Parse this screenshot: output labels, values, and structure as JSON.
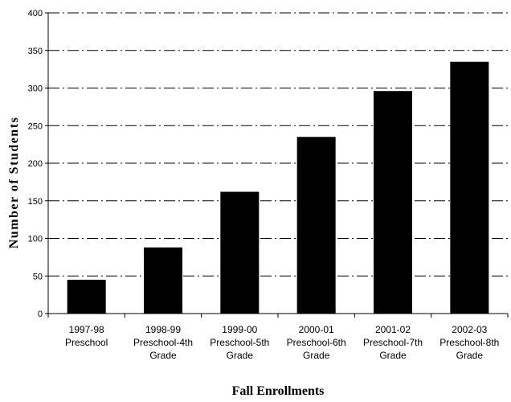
{
  "chart_data": {
    "type": "bar",
    "title": "",
    "xlabel": "Fall Enrollments",
    "ylabel": "Number of Students",
    "ylim": [
      0,
      400
    ],
    "yticks": [
      0,
      50,
      100,
      150,
      200,
      250,
      300,
      350,
      400
    ],
    "grid": true,
    "bar_color": "#000000",
    "categories": [
      [
        "1997-98",
        "Preschool"
      ],
      [
        "1998-99",
        "Preschool-4th",
        "Grade"
      ],
      [
        "1999-00",
        "Preschool-5th",
        "Grade"
      ],
      [
        "2000-01",
        "Preschool-6th",
        "Grade"
      ],
      [
        "2001-02",
        "Preschool-7th",
        "Grade"
      ],
      [
        "2002-03",
        "Preschool-8th",
        "Grade"
      ]
    ],
    "values": [
      45,
      88,
      162,
      235,
      296,
      335
    ]
  }
}
